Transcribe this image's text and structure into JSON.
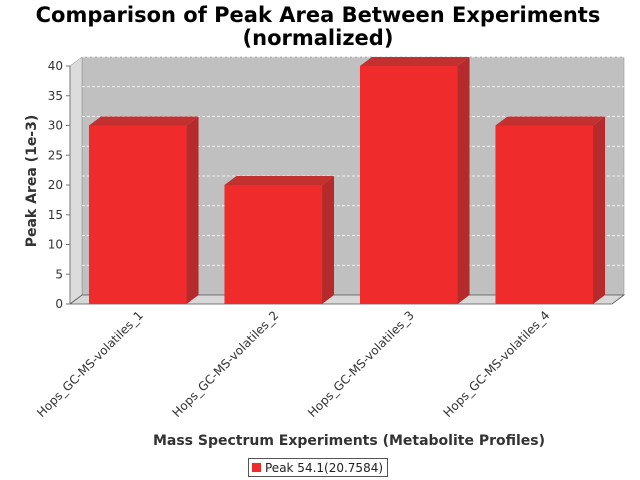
{
  "chart_data": {
    "type": "bar",
    "title": "Comparison of Peak Area Between Experiments",
    "subtitle": "(normalized)",
    "xlabel": "Mass Spectrum Experiments (Metabolite Profiles)",
    "ylabel": "Peak Area (1e-3)",
    "categories": [
      "Hops_GC-MS-volatiles_1",
      "Hops_GC-MS-volatiles_2",
      "Hops_GC-MS-volatiles_3",
      "Hops_GC-MS-volatiles_4"
    ],
    "series": [
      {
        "name": "Peak 54.1(20.7584)",
        "values": [
          30,
          20,
          40,
          30
        ],
        "color": "#f02b2b"
      }
    ],
    "ylim": [
      0,
      40
    ],
    "yticks": [
      0,
      5,
      10,
      15,
      20,
      25,
      30,
      35,
      40
    ],
    "grid": true,
    "plot_background": "#c0c0c0",
    "legend_position": "bottom-center"
  }
}
